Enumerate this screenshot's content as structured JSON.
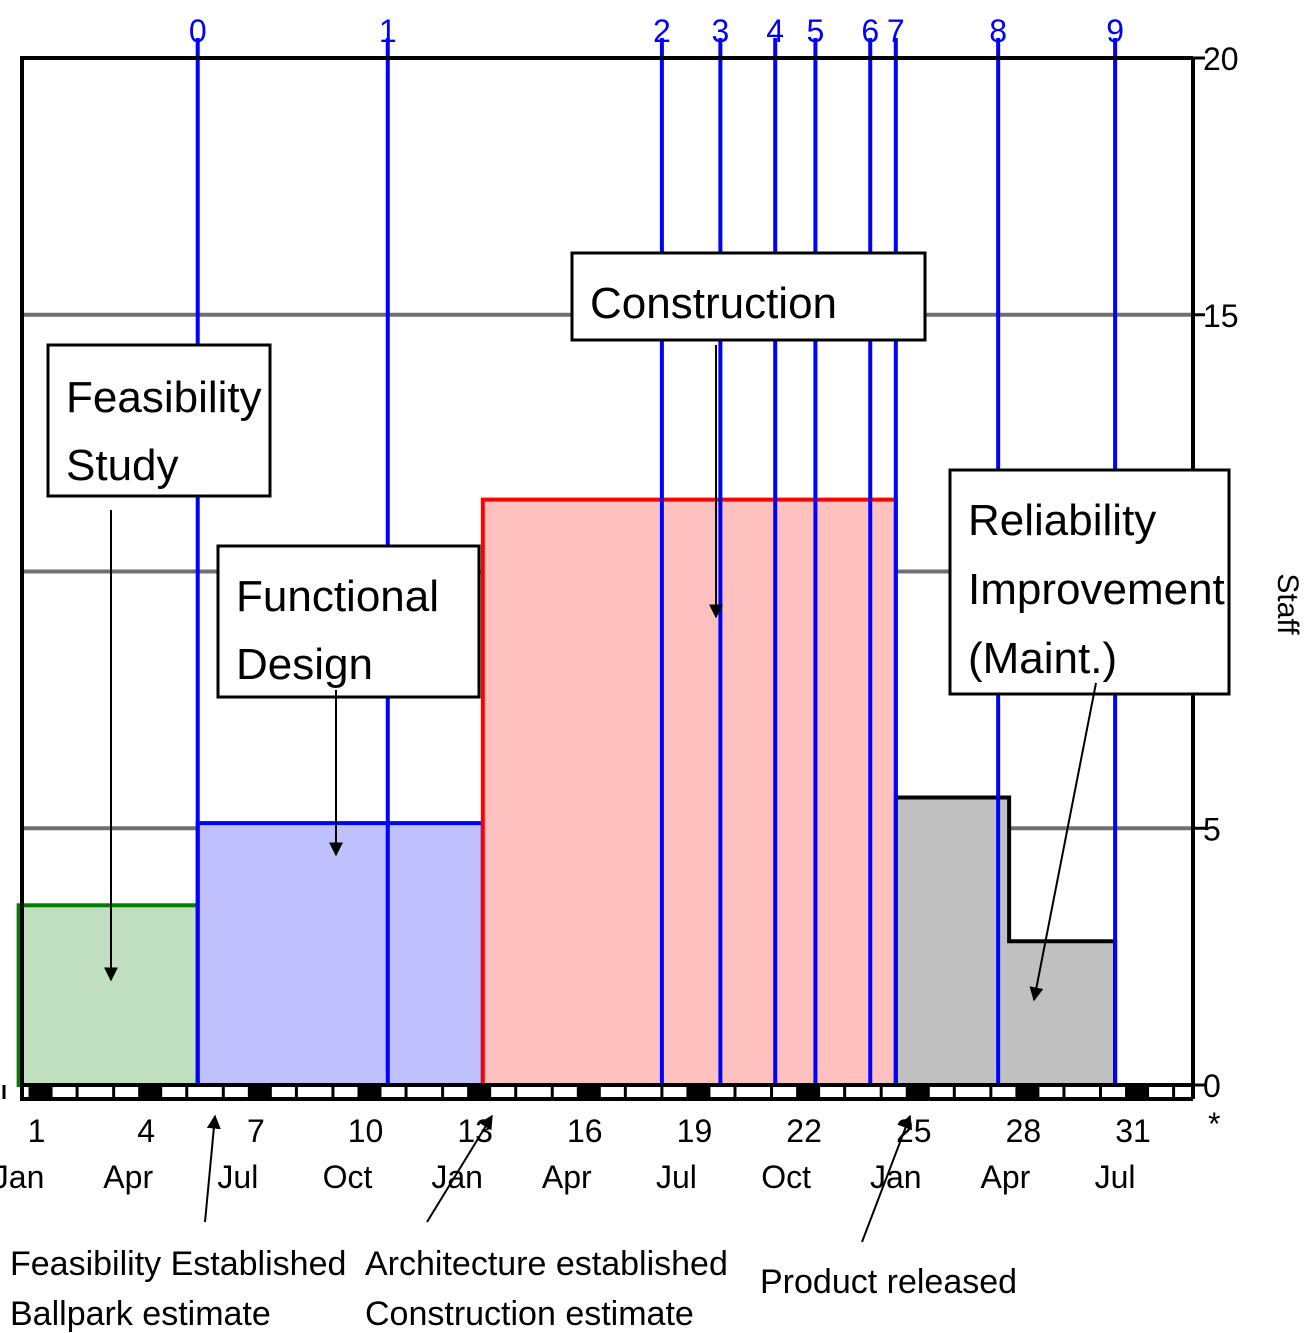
{
  "chart_data": {
    "type": "bar",
    "ylabel": "Staff",
    "ylim": [
      0,
      20
    ],
    "y_ticks": [
      0,
      5,
      15,
      20
    ],
    "xlim": [
      0,
      32
    ],
    "x_ticks": [
      1,
      4,
      7,
      10,
      13,
      16,
      19,
      22,
      25,
      28,
      31
    ],
    "x_tick_suffix": "*",
    "x_months": [
      "Jan",
      "Apr",
      "Jul",
      "Oct",
      "Jan",
      "Apr",
      "Jul",
      "Oct",
      "Jan",
      "Apr",
      "Jul"
    ],
    "grid": "horizontal",
    "milestones": [
      {
        "label": "0",
        "x": 5.3
      },
      {
        "label": "1",
        "x": 10.5
      },
      {
        "label": "2",
        "x": 18.0
      },
      {
        "label": "3",
        "x": 19.6
      },
      {
        "label": "4",
        "x": 21.1
      },
      {
        "label": "5",
        "x": 22.2
      },
      {
        "label": "6",
        "x": 23.7
      },
      {
        "label": "7",
        "x": 24.4
      },
      {
        "label": "8",
        "x": 27.2
      },
      {
        "label": "9",
        "x": 30.4
      }
    ],
    "phases": [
      {
        "name": "Feasibility Study",
        "lines": [
          "Feasibility",
          "Study"
        ],
        "start": 0.4,
        "end": 5.3,
        "value": 3.5,
        "fill": "#c0dfc0",
        "stroke": "#008000"
      },
      {
        "name": "Functional Design",
        "lines": [
          "Functional",
          "Design"
        ],
        "start": 5.3,
        "end": 13.1,
        "value": 5.1,
        "fill": "#c0c0ff",
        "stroke": "#0000ff"
      },
      {
        "name": "Construction",
        "lines": [
          "Construction"
        ],
        "start": 13.1,
        "end": 24.4,
        "value": 11.4,
        "fill": "#ffc0c0",
        "stroke": "#ff0000"
      },
      {
        "name": "Reliability Improvement (Maint.)",
        "lines": [
          "Reliability",
          "Improvement",
          "(Maint.)"
        ],
        "steps": [
          {
            "start": 24.4,
            "end": 27.5,
            "value": 5.6
          },
          {
            "start": 27.5,
            "end": 30.4,
            "value": 2.8
          }
        ],
        "fill": "#c0c0c0",
        "stroke": "#000000"
      }
    ],
    "annotations": [
      {
        "lines": [
          "Feasibility Established",
          "Ballpark estimate"
        ],
        "x": 5.3
      },
      {
        "lines": [
          "Architecture established",
          "Construction estimate"
        ],
        "x": 13.1
      },
      {
        "lines": [
          "Product released"
        ],
        "x": 24.4
      }
    ]
  }
}
